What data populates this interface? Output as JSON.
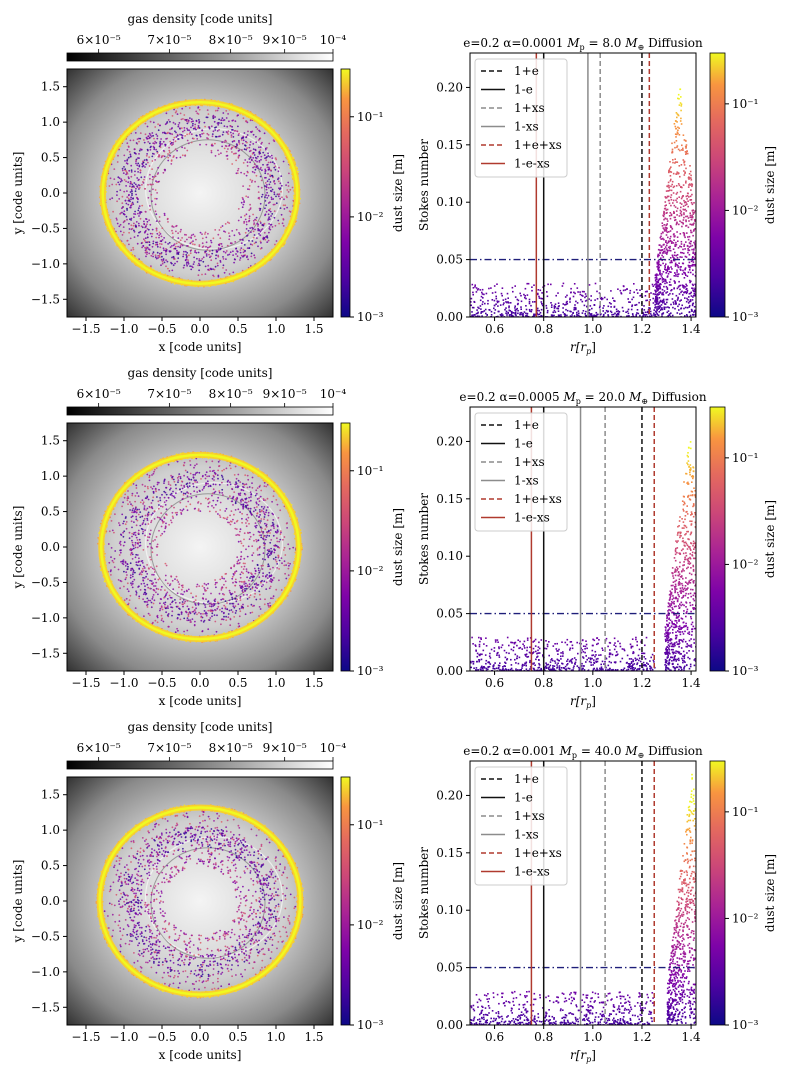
{
  "shared": {
    "gas_colorbar": {
      "label": "gas density [code units]",
      "ticks": [
        "6×10⁻⁵",
        "7×10⁻⁵",
        "8×10⁻⁵",
        "9×10⁻⁵",
        "10⁻⁴"
      ],
      "tick_values": [
        6e-05,
        7e-05,
        8e-05,
        9e-05,
        0.0001
      ],
      "range": [
        5.6e-05,
        0.0001
      ],
      "colormap": "grays"
    },
    "dust_colorbar": {
      "label": "dust size [m]",
      "label_right": "dust size [m]",
      "ticks": [
        "10⁻³",
        "10⁻²",
        "10⁻¹"
      ],
      "tick_values": [
        0.001,
        0.01,
        0.1
      ],
      "range": [
        0.001,
        0.3
      ],
      "colormap": "plasma"
    },
    "disk_axes": {
      "xlabel": "x [code units]",
      "ylabel": "y [code units]",
      "xticks": [
        "−1.5",
        "−1.0",
        "−0.5",
        "0.0",
        "0.5",
        "1.0",
        "1.5"
      ],
      "xtick_values": [
        -1.5,
        -1.0,
        -0.5,
        0.0,
        0.5,
        1.0,
        1.5
      ],
      "yticks": [
        "−1.5",
        "−1.0",
        "−0.5",
        "0.0",
        "0.5",
        "1.0",
        "1.5"
      ],
      "ytick_values": [
        -1.5,
        -1.0,
        -0.5,
        0.0,
        0.5,
        1.0,
        1.5
      ],
      "range": [
        -1.75,
        1.75
      ]
    },
    "stokes_axes": {
      "xlabel": "r[r",
      "xlabel_sub": "p",
      "xlabel_close": "]",
      "ylabel": "Stokes number",
      "xticks": [
        "0.6",
        "0.8",
        "1.0",
        "1.2",
        "1.4"
      ],
      "xtick_values": [
        0.6,
        0.8,
        1.0,
        1.2,
        1.4
      ],
      "yticks": [
        "0.00",
        "0.05",
        "0.10",
        "0.15",
        "0.20"
      ],
      "ytick_values": [
        0.0,
        0.05,
        0.1,
        0.15,
        0.2
      ],
      "xlim": [
        0.5,
        1.42
      ],
      "ylim": [
        0.0,
        0.23
      ],
      "hline": 0.05
    },
    "legend_labels": [
      "1+e",
      "1-e",
      "1+xs",
      "1-xs",
      "1+e+xs",
      "1-e-xs"
    ]
  },
  "chart_data": [
    {
      "type": "heatmap",
      "panel": "disk",
      "row": 1,
      "ring_outer_radius": 1.28,
      "ring_inner_radius": 0.95,
      "cavity_radius": 0.55,
      "colorbar_label": "dust size [m]"
    },
    {
      "type": "scatter",
      "panel": "stokes",
      "row": 1,
      "title": "e=0.2 α=0.0001 Mₚ = 8.0 M⊕  Diffusion",
      "title_parts": {
        "pre": "e=0.2 α=0.0001 ",
        "mp": "M",
        "mp_sub": "p",
        "mid": " = 8.0 ",
        "me": "M",
        "me_sub": "⊕",
        "post": "  Diffusion"
      },
      "vlines": {
        "1+e": 1.2,
        "1-e": 0.8,
        "1+xs": 1.03,
        "1-xs": 0.98,
        "1+e+xs": 1.23,
        "1-e-xs": 0.77
      },
      "peak_r": 1.35,
      "peak_stokes": 0.205
    },
    {
      "type": "heatmap",
      "panel": "disk",
      "row": 2,
      "ring_outer_radius": 1.3,
      "ring_inner_radius": 0.92,
      "cavity_radius": 0.5,
      "colorbar_label": "dust size [m]"
    },
    {
      "type": "scatter",
      "panel": "stokes",
      "row": 2,
      "title": "e=0.2 α=0.0005 Mₚ = 20.0 M⊕  Diffusion",
      "title_parts": {
        "pre": "e=0.2 α=0.0005 ",
        "mp": "M",
        "mp_sub": "p",
        "mid": " = 20.0 ",
        "me": "M",
        "me_sub": "⊕",
        "post": "  Diffusion"
      },
      "vlines": {
        "1+e": 1.2,
        "1-e": 0.8,
        "1+xs": 1.05,
        "1-xs": 0.95,
        "1+e+xs": 1.25,
        "1-e-xs": 0.75
      },
      "peak_r": 1.39,
      "peak_stokes": 0.21
    },
    {
      "type": "heatmap",
      "panel": "disk",
      "row": 3,
      "ring_outer_radius": 1.32,
      "ring_inner_radius": 0.92,
      "cavity_radius": 0.48,
      "colorbar_label": "dust size [m]"
    },
    {
      "type": "scatter",
      "panel": "stokes",
      "row": 3,
      "title": "e=0.2 α=0.001 Mₚ = 40.0 M⊕  Diffusion",
      "title_parts": {
        "pre": "e=0.2 α=0.001 ",
        "mp": "M",
        "mp_sub": "p",
        "mid": " = 40.0 ",
        "me": "M",
        "me_sub": "⊕",
        "post": "  Diffusion"
      },
      "vlines": {
        "1+e": 1.2,
        "1-e": 0.8,
        "1+xs": 1.05,
        "1-xs": 0.95,
        "1+e+xs": 1.25,
        "1-e-xs": 0.75
      },
      "peak_r": 1.4,
      "peak_stokes": 0.22
    }
  ]
}
